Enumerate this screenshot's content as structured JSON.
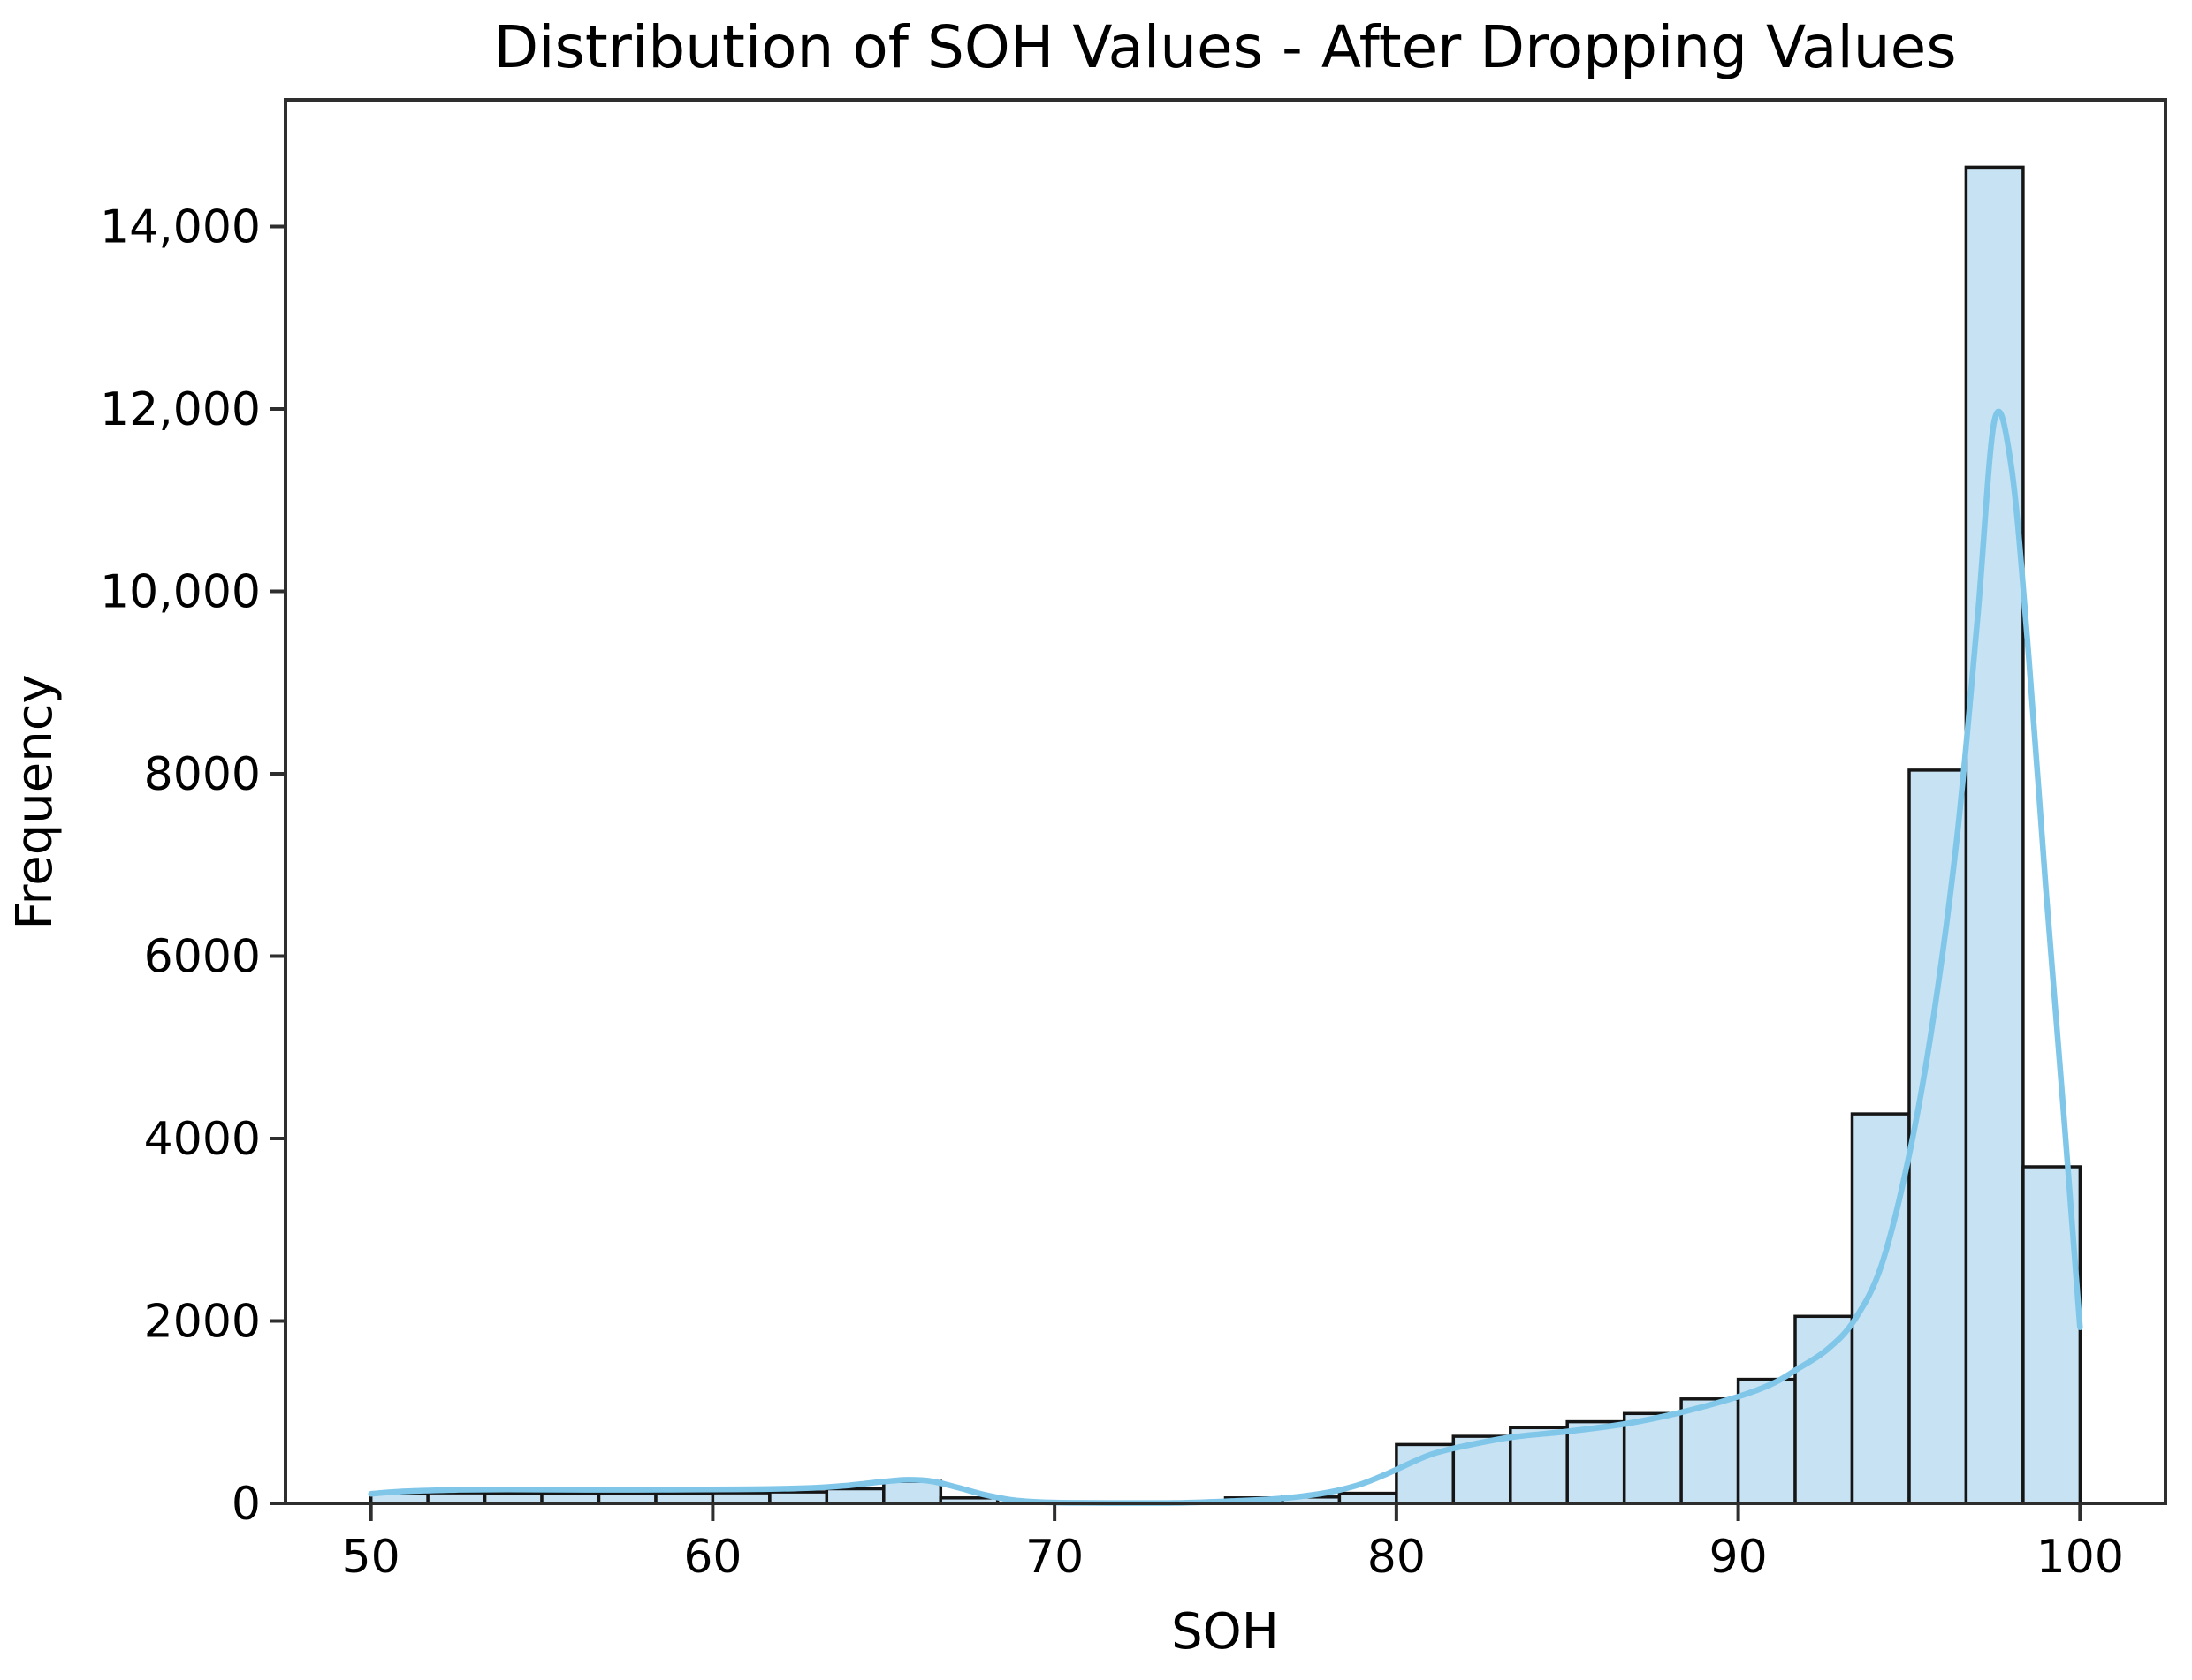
{
  "chart_data": {
    "type": "bar",
    "subtype": "histogram_with_kde",
    "title": "Distribution of SOH Values - After Dropping Values",
    "xlabel": "SOH",
    "ylabel": "Frequency",
    "xlim": [
      47.5,
      102.5
    ],
    "ylim": [
      0,
      15390
    ],
    "grid": false,
    "legend": "none",
    "x_ticks": [
      {
        "v": 50,
        "label": "50"
      },
      {
        "v": 60,
        "label": "60"
      },
      {
        "v": 70,
        "label": "70"
      },
      {
        "v": 80,
        "label": "80"
      },
      {
        "v": 90,
        "label": "90"
      },
      {
        "v": 100,
        "label": "100"
      }
    ],
    "y_ticks": [
      {
        "v": 0,
        "label": "0"
      },
      {
        "v": 2000,
        "label": "2000"
      },
      {
        "v": 4000,
        "label": "4000"
      },
      {
        "v": 6000,
        "label": "6000"
      },
      {
        "v": 8000,
        "label": "8000"
      },
      {
        "v": 10000,
        "label": "10,000"
      },
      {
        "v": 12000,
        "label": "12,000"
      },
      {
        "v": 14000,
        "label": "14,000"
      }
    ],
    "bins": {
      "start": 50,
      "width": 1.6666667,
      "counts": [
        110,
        115,
        110,
        108,
        105,
        110,
        115,
        125,
        160,
        240,
        60,
        0,
        0,
        0,
        0,
        60,
        70,
        110,
        645,
        735,
        830,
        895,
        985,
        1145,
        1360,
        2050,
        4270,
        8040,
        14650,
        3690
      ]
    },
    "kde": [
      [
        50,
        105
      ],
      [
        51,
        132
      ],
      [
        52.5,
        148
      ],
      [
        54,
        152
      ],
      [
        55.5,
        150
      ],
      [
        57,
        149
      ],
      [
        58.5,
        150
      ],
      [
        60,
        152
      ],
      [
        61.5,
        156
      ],
      [
        63,
        170
      ],
      [
        64,
        198
      ],
      [
        65,
        238
      ],
      [
        65.7,
        258
      ],
      [
        66.4,
        242
      ],
      [
        67.2,
        170
      ],
      [
        68,
        90
      ],
      [
        68.8,
        35
      ],
      [
        69.6,
        14
      ],
      [
        70.6,
        6
      ],
      [
        72,
        4
      ],
      [
        73.5,
        5
      ],
      [
        75,
        22
      ],
      [
        76.3,
        45
      ],
      [
        77.3,
        80
      ],
      [
        78.2,
        135
      ],
      [
        79,
        215
      ],
      [
        79.7,
        320
      ],
      [
        80.4,
        440
      ],
      [
        81,
        535
      ],
      [
        81.7,
        605
      ],
      [
        83.3,
        722
      ],
      [
        85,
        788
      ],
      [
        86.7,
        872
      ],
      [
        88.3,
        995
      ],
      [
        90,
        1170
      ],
      [
        91,
        1312
      ],
      [
        91.7,
        1465
      ],
      [
        92.6,
        1685
      ],
      [
        93.4,
        2010
      ],
      [
        94.2,
        2620
      ],
      [
        95,
        3820
      ],
      [
        95.7,
        5300
      ],
      [
        96.4,
        7300
      ],
      [
        97,
        9700
      ],
      [
        97.5,
        11880
      ],
      [
        98,
        11340
      ],
      [
        98.5,
        9280
      ],
      [
        99,
        6750
      ],
      [
        99.5,
        4380
      ],
      [
        100,
        1930
      ]
    ],
    "kde_peak": {
      "x": 97.5,
      "y": 11880
    },
    "colors": {
      "bar_fill": "#c6e2f3",
      "bar_edge": "#151515",
      "kde_line": "#7fc6e9",
      "spine": "#2e2e2e",
      "text": "#000000",
      "background": "#ffffff"
    }
  }
}
